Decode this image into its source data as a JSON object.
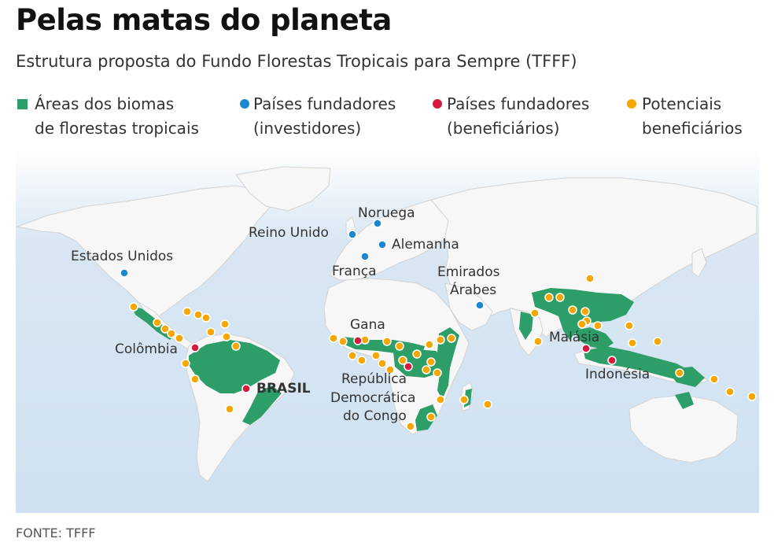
{
  "title": "Pelas matas do planeta",
  "subtitle": "Estrutura proposta do Fundo Florestas Tropicais para Sempre (TFFF)",
  "legend": {
    "forest": {
      "line1": "Áreas dos biomas",
      "line2": "de florestas tropicais"
    },
    "investors": {
      "line1": "Países fundadores",
      "line2": "(investidores)"
    },
    "beneficiaries": {
      "line1": "Países fundadores",
      "line2": "(beneficiários)"
    },
    "potential": {
      "line1": "Potenciais",
      "line2": "beneficiários"
    }
  },
  "colors": {
    "forest": "#2e9e68",
    "investors": "#1a87d0",
    "beneficiaries": "#d6173e",
    "potential": "#f5a700",
    "land": "#f7f7f7",
    "ocean": "#cfe1f1"
  },
  "labels": {
    "noruega": "Noruega",
    "reino_unido": "Reino Unido",
    "alemanha": "Alemanha",
    "franca": "França",
    "estados_unidos": "Estados Unidos",
    "emirados1": "Emirados",
    "emirados2": "Árabes",
    "gana": "Gana",
    "colombia": "Colômbia",
    "brasil": "BRASIL",
    "rdc1": "República",
    "rdc2": "Democrática",
    "rdc3": "do Congo",
    "malasia": "Malásia",
    "indonesia": "Indonésia"
  },
  "source": "FONTE: TFFF"
}
